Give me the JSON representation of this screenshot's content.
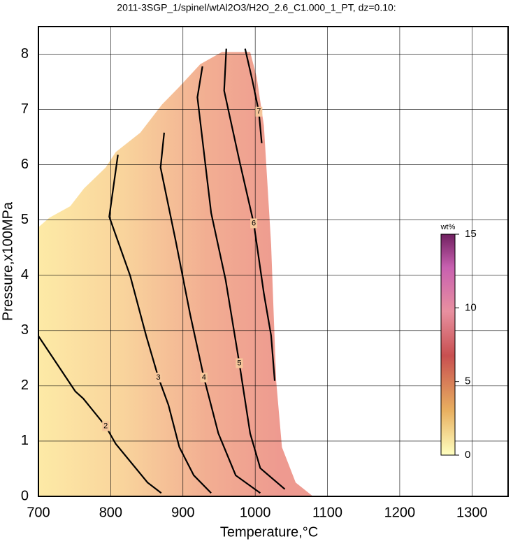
{
  "chart_data": {
    "type": "contour",
    "title": "2011-3SGP_1/spinel/wtAl2O3/H2O_2.6_C1.000_1_PT, dz=0.10:",
    "x_label": "Temperature,°C",
    "y_label": "Pressure,x100MPa",
    "xlim": [
      700,
      1350
    ],
    "xticks": [
      700,
      800,
      900,
      1000,
      1100,
      1200,
      1300
    ],
    "ylim": [
      0,
      8.5
    ],
    "yticks": [
      0,
      1,
      2,
      3,
      4,
      5,
      6,
      7,
      8
    ],
    "grid": true,
    "field": {
      "x": [
        700,
        700,
        715,
        744,
        763,
        793,
        807,
        841,
        871,
        895,
        924,
        954,
        993,
        1002,
        1012,
        1022,
        1029,
        1037,
        1056,
        1080
      ],
      "y": [
        0,
        4.87,
        5.04,
        5.25,
        5.57,
        5.95,
        6.23,
        6.58,
        7.09,
        7.41,
        7.82,
        8.04,
        8.04,
        7.59,
        6.71,
        4.56,
        2.09,
        0.89,
        0.25,
        0
      ]
    },
    "contours": [
      {
        "level": 2,
        "x": [
          700,
          751,
          762,
          793,
          807,
          851,
          870
        ],
        "y": [
          2.9,
          1.9,
          1.77,
          1.27,
          0.95,
          0.25,
          0.06
        ]
      },
      {
        "level": 3,
        "x": [
          810,
          798,
          827,
          849,
          866,
          880,
          895,
          915,
          939
        ],
        "y": [
          6.18,
          5.06,
          3.99,
          2.91,
          2.15,
          1.65,
          0.89,
          0.38,
          0.06
        ]
      },
      {
        "level": 4,
        "x": [
          874,
          869,
          890,
          910,
          929,
          949,
          973,
          1007
        ],
        "y": [
          6.58,
          5.95,
          4.62,
          3.29,
          2.15,
          1.14,
          0.38,
          0.06
        ]
      },
      {
        "level": 5,
        "x": [
          927,
          920,
          939,
          959,
          978,
          993,
          1007,
          1041
        ],
        "y": [
          7.78,
          7.22,
          5.13,
          3.92,
          2.41,
          1.14,
          0.51,
          0.13
        ]
      },
      {
        "level": 6,
        "x": [
          960,
          957,
          978,
          998,
          1012,
          1022,
          1027
        ],
        "y": [
          8.1,
          7.34,
          6.08,
          4.94,
          3.67,
          2.91,
          2.09
        ]
      },
      {
        "level": 7,
        "x": [
          986,
          996,
          1005,
          1009
        ],
        "y": [
          8.1,
          7.53,
          6.96,
          6.39
        ]
      }
    ],
    "colorbar": {
      "label": "wt%",
      "lim": [
        0,
        15
      ],
      "ticks": [
        0,
        5,
        10,
        15
      ]
    }
  }
}
